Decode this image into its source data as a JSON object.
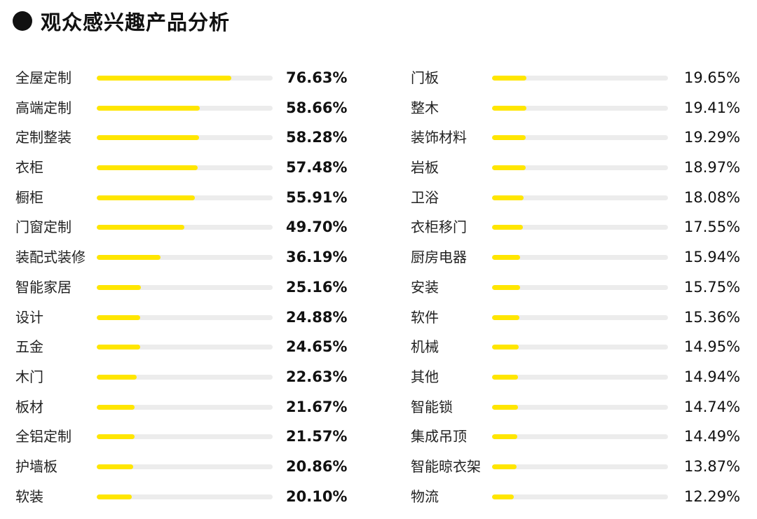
{
  "title": "观众感兴趣产品分析",
  "colors": {
    "bar_fill": "#ffe600",
    "bar_track": "#ececec",
    "bullet": "#111111"
  },
  "chart_data": {
    "type": "bar",
    "orientation": "horizontal",
    "title": "观众感兴趣产品分析",
    "value_range": [
      0,
      100
    ],
    "unit": "%",
    "columns": [
      {
        "items": [
          {
            "label": "全屋定制",
            "value": 76.63,
            "value_text": "76.63%"
          },
          {
            "label": "高端定制",
            "value": 58.66,
            "value_text": "58.66%"
          },
          {
            "label": "定制整装",
            "value": 58.28,
            "value_text": "58.28%"
          },
          {
            "label": "衣柜",
            "value": 57.48,
            "value_text": "57.48%"
          },
          {
            "label": "橱柜",
            "value": 55.91,
            "value_text": "55.91%"
          },
          {
            "label": "门窗定制",
            "value": 49.7,
            "value_text": "49.70%"
          },
          {
            "label": "装配式装修",
            "value": 36.19,
            "value_text": "36.19%"
          },
          {
            "label": "智能家居",
            "value": 25.16,
            "value_text": "25.16%"
          },
          {
            "label": "设计",
            "value": 24.88,
            "value_text": "24.88%"
          },
          {
            "label": "五金",
            "value": 24.65,
            "value_text": "24.65%"
          },
          {
            "label": "木门",
            "value": 22.63,
            "value_text": "22.63%"
          },
          {
            "label": "板材",
            "value": 21.67,
            "value_text": "21.67%"
          },
          {
            "label": "全铝定制",
            "value": 21.57,
            "value_text": "21.57%"
          },
          {
            "label": "护墙板",
            "value": 20.86,
            "value_text": "20.86%"
          },
          {
            "label": "软装",
            "value": 20.1,
            "value_text": "20.10%"
          }
        ]
      },
      {
        "items": [
          {
            "label": "门板",
            "value": 19.65,
            "value_text": "19.65%"
          },
          {
            "label": "整木",
            "value": 19.41,
            "value_text": "19.41%"
          },
          {
            "label": "装饰材料",
            "value": 19.29,
            "value_text": "19.29%"
          },
          {
            "label": "岩板",
            "value": 18.97,
            "value_text": "18.97%"
          },
          {
            "label": "卫浴",
            "value": 18.08,
            "value_text": "18.08%"
          },
          {
            "label": "衣柜移门",
            "value": 17.55,
            "value_text": "17.55%"
          },
          {
            "label": "厨房电器",
            "value": 15.94,
            "value_text": "15.94%"
          },
          {
            "label": "安装",
            "value": 15.75,
            "value_text": "15.75%"
          },
          {
            "label": "软件",
            "value": 15.36,
            "value_text": "15.36%"
          },
          {
            "label": "机械",
            "value": 14.95,
            "value_text": "14.95%"
          },
          {
            "label": "其他",
            "value": 14.94,
            "value_text": "14.94%"
          },
          {
            "label": "智能锁",
            "value": 14.74,
            "value_text": "14.74%"
          },
          {
            "label": "集成吊顶",
            "value": 14.49,
            "value_text": "14.49%"
          },
          {
            "label": "智能晾衣架",
            "value": 13.87,
            "value_text": "13.87%"
          },
          {
            "label": "物流",
            "value": 12.29,
            "value_text": "12.29%"
          }
        ]
      }
    ]
  }
}
